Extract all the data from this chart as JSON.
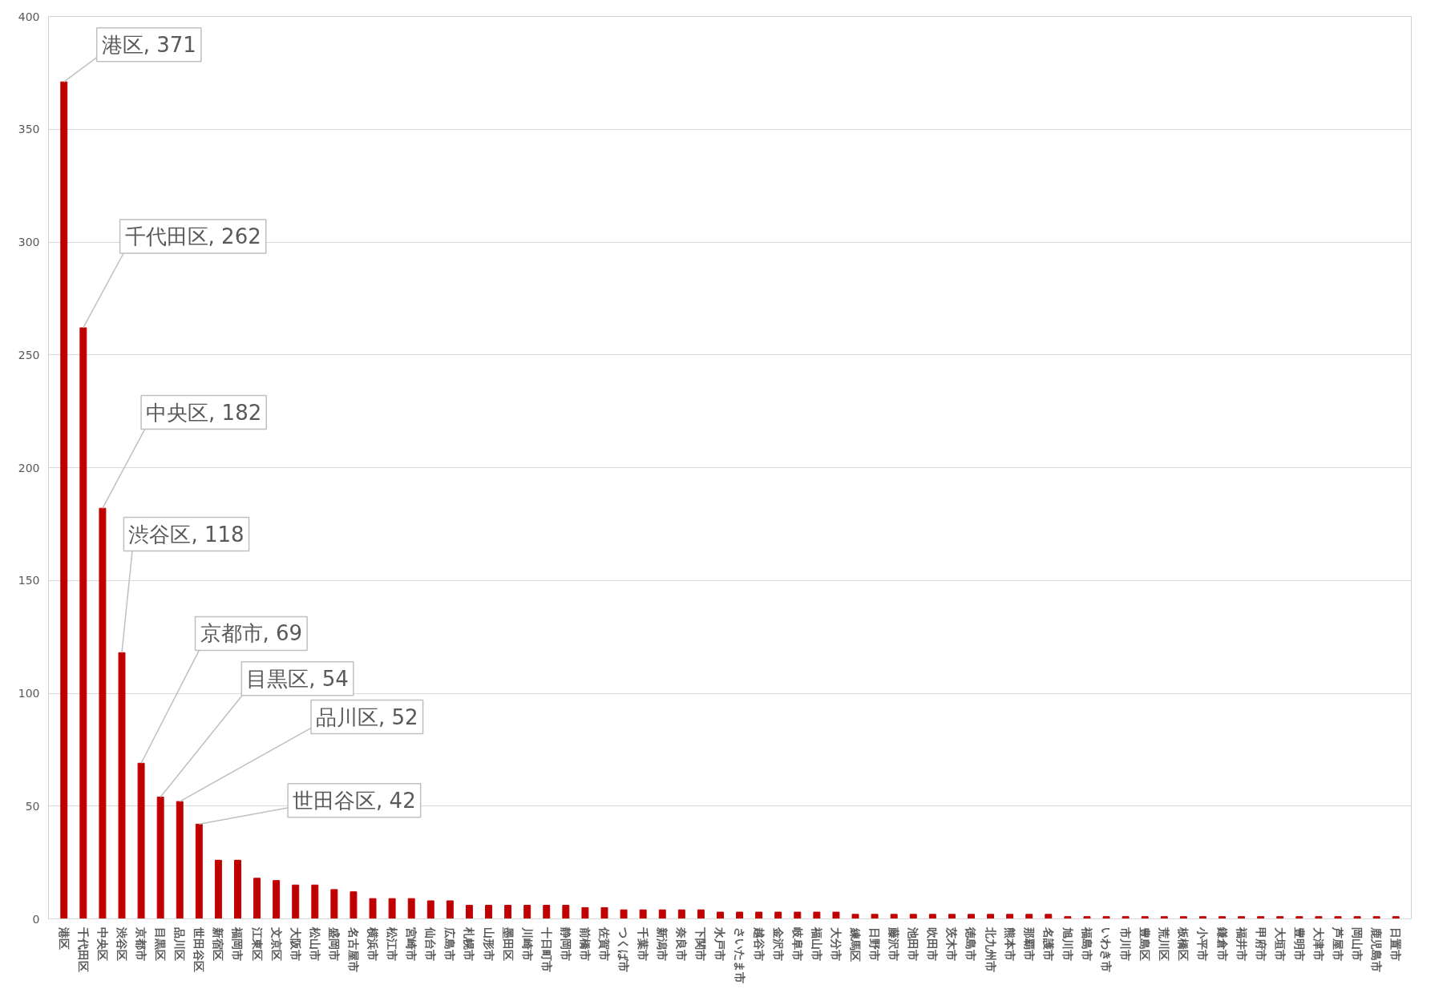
{
  "chart_data": {
    "type": "bar",
    "categories": [
      "港区",
      "千代田区",
      "中央区",
      "渋谷区",
      "京都市",
      "目黒区",
      "品川区",
      "世田谷区",
      "新宿区",
      "福岡市",
      "江東区",
      "文京区",
      "大阪市",
      "松山市",
      "盛岡市",
      "名古屋市",
      "横浜市",
      "松江市",
      "宮崎市",
      "仙台市",
      "広島市",
      "札幌市",
      "山形市",
      "墨田区",
      "川崎市",
      "十日町市",
      "静岡市",
      "前橋市",
      "佐賀市",
      "つくば市",
      "千葉市",
      "新潟市",
      "奈良市",
      "下関市",
      "水戸市",
      "さいたま市",
      "越谷市",
      "金沢市",
      "岐阜市",
      "福山市",
      "大分市",
      "練馬区",
      "日野市",
      "藤沢市",
      "池田市",
      "吹田市",
      "茨木市",
      "徳島市",
      "北九州市",
      "熊本市",
      "那覇市",
      "名護市",
      "旭川市",
      "福島市",
      "いわき市",
      "市川市",
      "豊島区",
      "荒川区",
      "板橋区",
      "小平市",
      "鎌倉市",
      "福井市",
      "甲府市",
      "大垣市",
      "豊明市",
      "大津市",
      "芦屋市",
      "岡山市",
      "鹿児島市",
      "日置市"
    ],
    "values": [
      371,
      262,
      182,
      118,
      69,
      54,
      52,
      42,
      26,
      26,
      18,
      17,
      15,
      15,
      13,
      12,
      9,
      9,
      9,
      8,
      8,
      6,
      6,
      6,
      6,
      6,
      6,
      5,
      5,
      4,
      4,
      4,
      4,
      4,
      3,
      3,
      3,
      3,
      3,
      3,
      3,
      2,
      2,
      2,
      2,
      2,
      2,
      2,
      2,
      2,
      2,
      2,
      1,
      1,
      1,
      1,
      1,
      1,
      1,
      1,
      1,
      1,
      1,
      1,
      1,
      1,
      1,
      1,
      1,
      1
    ],
    "color": "#c00000",
    "ylim": [
      0,
      400
    ],
    "yticks": [
      0,
      50,
      100,
      150,
      200,
      250,
      300,
      350,
      400
    ],
    "grid": "y",
    "annotations": [
      {
        "text": "港区, 371",
        "x": "港区",
        "y": 371
      },
      {
        "text": "千代田区, 262",
        "x": "千代田区",
        "y": 262
      },
      {
        "text": "中央区, 182",
        "x": "中央区",
        "y": 182
      },
      {
        "text": "渋谷区, 118",
        "x": "渋谷区",
        "y": 118
      },
      {
        "text": "京都市, 69",
        "x": "京都市",
        "y": 69
      },
      {
        "text": "目黒区, 54",
        "x": "目黒区",
        "y": 54
      },
      {
        "text": "品川区, 52",
        "x": "品川区",
        "y": 52
      },
      {
        "text": "世田谷区, 42",
        "x": "世田谷区",
        "y": 42
      }
    ]
  }
}
